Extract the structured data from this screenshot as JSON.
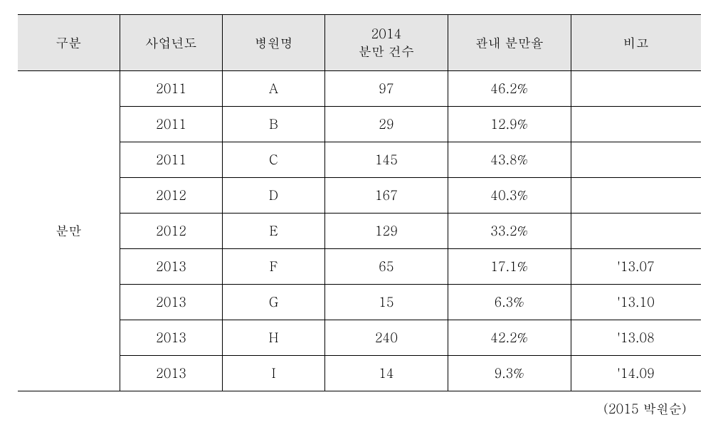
{
  "table": {
    "columns": [
      {
        "label": "구분",
        "width": "15%"
      },
      {
        "label": "사업년도",
        "width": "15%"
      },
      {
        "label": "병원명",
        "width": "15%"
      },
      {
        "label": "2014\n분만 건수",
        "width": "18%"
      },
      {
        "label": "관내 분만율",
        "width": "18%"
      },
      {
        "label": "비고",
        "width": "19%"
      }
    ],
    "category": "분만",
    "rows": [
      {
        "year": "2011",
        "hospital": "A",
        "count": "97",
        "rate": "46.2%",
        "note": ""
      },
      {
        "year": "2011",
        "hospital": "B",
        "count": "29",
        "rate": "12.9%",
        "note": ""
      },
      {
        "year": "2011",
        "hospital": "C",
        "count": "145",
        "rate": "43.8%",
        "note": ""
      },
      {
        "year": "2012",
        "hospital": "D",
        "count": "167",
        "rate": "40.3%",
        "note": ""
      },
      {
        "year": "2012",
        "hospital": "E",
        "count": "129",
        "rate": "33.2%",
        "note": ""
      },
      {
        "year": "2013",
        "hospital": "F",
        "count": "65",
        "rate": "17.1%",
        "note": "'13.07"
      },
      {
        "year": "2013",
        "hospital": "G",
        "count": "15",
        "rate": "6.3%",
        "note": "'13.10"
      },
      {
        "year": "2013",
        "hospital": "H",
        "count": "240",
        "rate": "42.2%",
        "note": "'13.08"
      },
      {
        "year": "2013",
        "hospital": "I",
        "count": "14",
        "rate": "9.3%",
        "note": "'14.09"
      }
    ]
  },
  "citation": "(2015 박원순)",
  "styling": {
    "header_bg": "#e5e5e5",
    "border_color": "#000000",
    "font_size": 18,
    "cell_padding": "12px 8px",
    "header_padding": "14px 8px"
  }
}
